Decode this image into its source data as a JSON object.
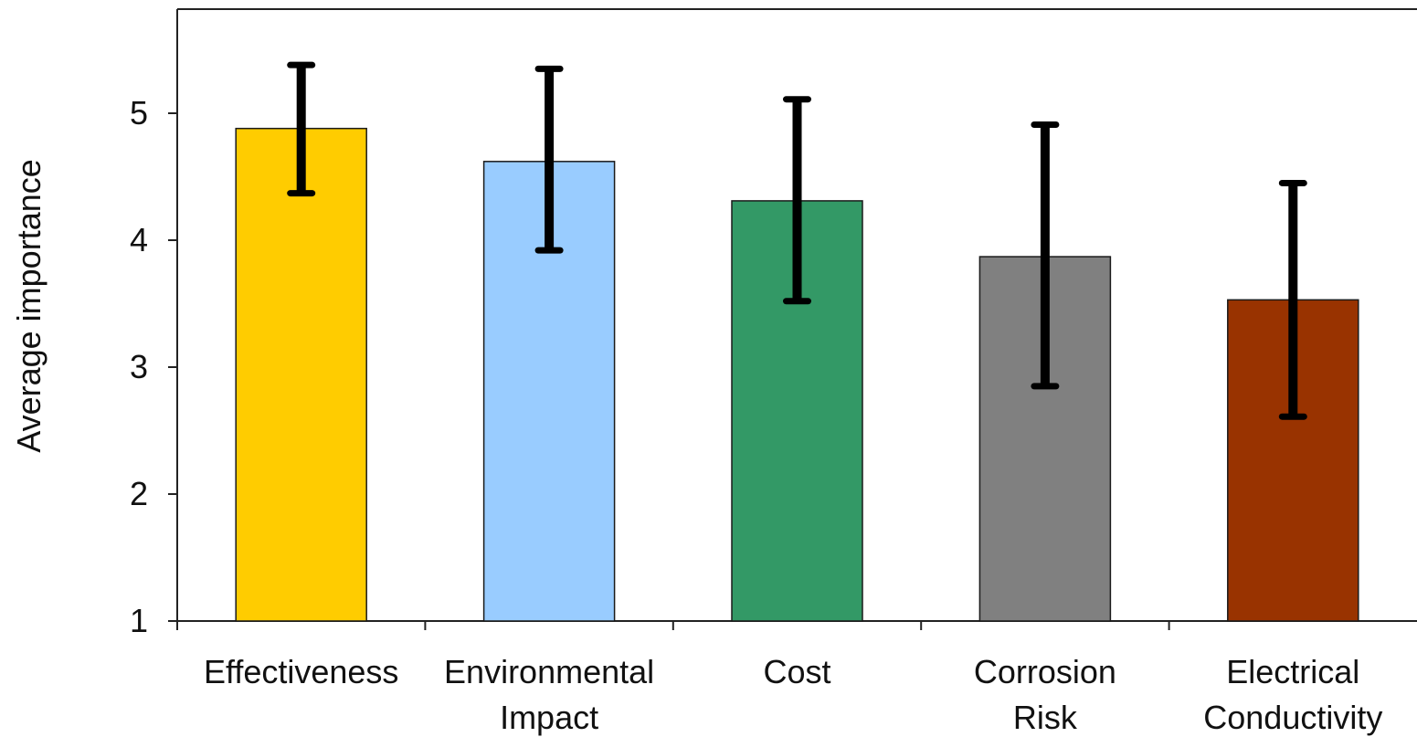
{
  "chart_data": {
    "type": "bar",
    "xlabel": "",
    "ylabel": "Average importance",
    "ylim": [
      1,
      5.8
    ],
    "yticks": [
      1,
      2,
      3,
      4,
      5
    ],
    "categories": [
      [
        "Effectiveness"
      ],
      [
        "Environmental",
        "Impact"
      ],
      [
        "Cost"
      ],
      [
        "Corrosion",
        "Risk"
      ],
      [
        "Electrical",
        "Conductivity"
      ]
    ],
    "values": [
      4.88,
      4.62,
      4.31,
      3.87,
      3.53
    ],
    "error_high": [
      5.38,
      5.35,
      5.11,
      4.91,
      4.45
    ],
    "error_low": [
      4.37,
      3.92,
      3.52,
      2.85,
      2.61
    ],
    "colors": [
      "#FFCC00",
      "#99CCFF",
      "#339966",
      "#808080",
      "#993300"
    ],
    "grid": false,
    "legend": "none"
  }
}
